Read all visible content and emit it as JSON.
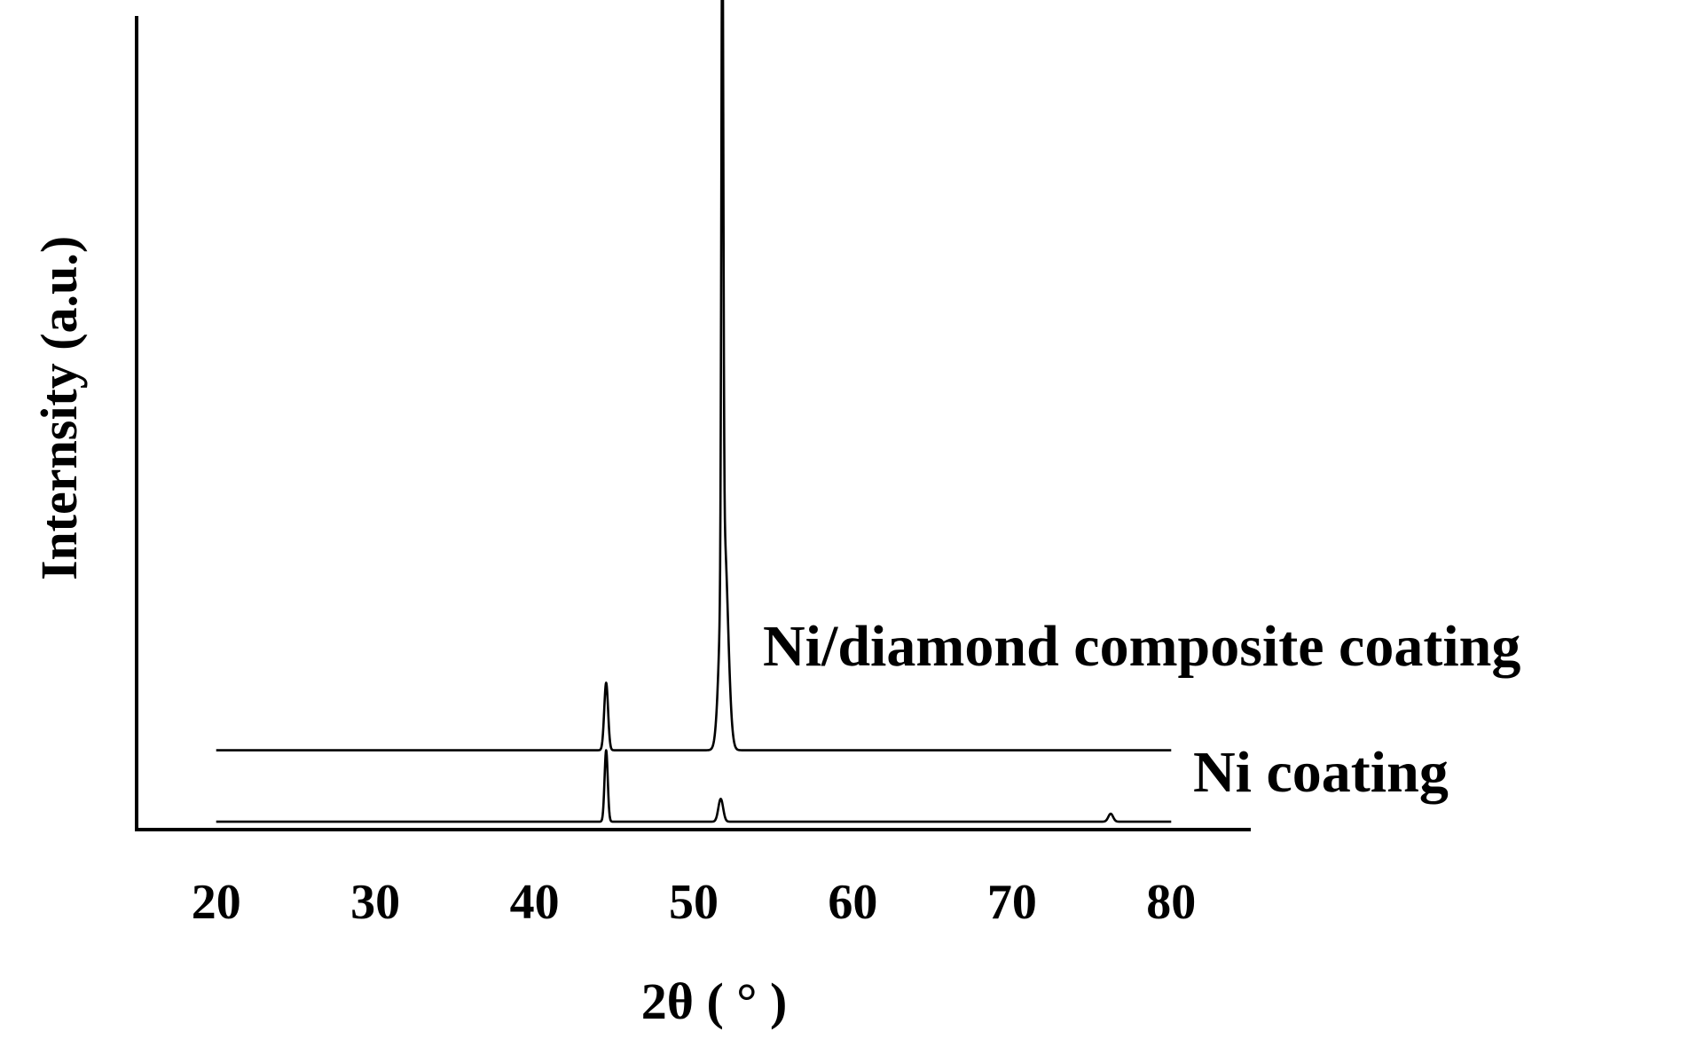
{
  "chart_data": {
    "type": "line",
    "xlabel": "2θ ( ° )",
    "ylabel": "Internsity (a.u.)",
    "xlim": [
      15,
      85
    ],
    "xticks": [
      20,
      30,
      40,
      50,
      60,
      70,
      80
    ],
    "grid": false,
    "series": [
      {
        "name": "Ni/diamond composite coating",
        "baseline": 8,
        "x_range": [
          20,
          80
        ],
        "peaks": [
          {
            "x": 44.5,
            "height": 6.8,
            "width": 0.12
          },
          {
            "x": 51.8,
            "height": 67.5,
            "width": 0.06
          },
          {
            "x": 51.9,
            "height": 22,
            "width": 0.25
          }
        ]
      },
      {
        "name": "Ni coating",
        "baseline": 0.8,
        "x_range": [
          20,
          80
        ],
        "peaks": [
          {
            "x": 44.5,
            "height": 7.2,
            "width": 0.1
          },
          {
            "x": 51.7,
            "height": 2.3,
            "width": 0.15
          },
          {
            "x": 76.2,
            "height": 0.8,
            "width": 0.15
          }
        ]
      }
    ],
    "ylim": [
      0,
      82
    ]
  }
}
